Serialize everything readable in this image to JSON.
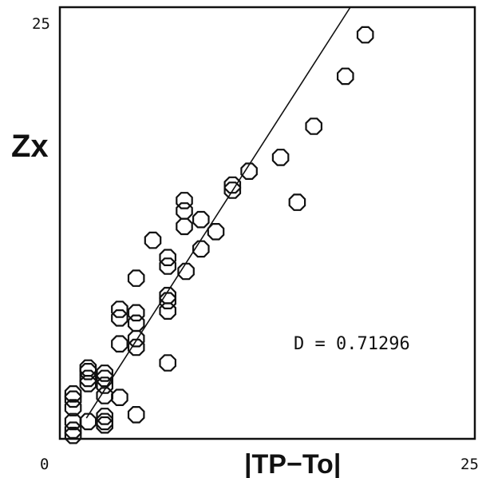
{
  "chart_data": {
    "type": "scatter",
    "y_axis_label": "Zx",
    "x_axis_label": "|TP−To|",
    "xlim": [
      0,
      25
    ],
    "ylim": [
      0,
      25
    ],
    "x_ticks": [
      "0",
      "25"
    ],
    "y_ticks": [
      "25"
    ],
    "annotation": "D = 0.71296",
    "fit_line": [
      [
        1.6,
        1.2
      ],
      [
        17.5,
        25.0
      ]
    ],
    "points": [
      [
        0.8,
        0.2
      ],
      [
        0.8,
        0.5
      ],
      [
        0.8,
        1.0
      ],
      [
        0.8,
        1.8
      ],
      [
        0.8,
        2.3
      ],
      [
        0.8,
        2.6
      ],
      [
        1.7,
        1.0
      ],
      [
        1.7,
        3.2
      ],
      [
        1.7,
        3.5
      ],
      [
        1.7,
        3.9
      ],
      [
        1.7,
        4.1
      ],
      [
        2.7,
        0.8
      ],
      [
        2.7,
        1.0
      ],
      [
        2.7,
        1.3
      ],
      [
        2.7,
        2.5
      ],
      [
        2.7,
        3.1
      ],
      [
        2.7,
        3.5
      ],
      [
        2.7,
        3.8
      ],
      [
        3.6,
        2.4
      ],
      [
        3.6,
        5.5
      ],
      [
        3.6,
        7.0
      ],
      [
        3.6,
        7.5
      ],
      [
        4.6,
        1.4
      ],
      [
        4.6,
        5.3
      ],
      [
        4.6,
        5.8
      ],
      [
        4.6,
        6.7
      ],
      [
        4.6,
        7.3
      ],
      [
        4.6,
        9.3
      ],
      [
        5.6,
        11.5
      ],
      [
        6.5,
        4.4
      ],
      [
        6.5,
        7.4
      ],
      [
        6.5,
        8.0
      ],
      [
        6.5,
        8.3
      ],
      [
        6.5,
        10.0
      ],
      [
        6.5,
        10.5
      ],
      [
        7.5,
        12.3
      ],
      [
        7.5,
        13.2
      ],
      [
        7.5,
        13.8
      ],
      [
        7.6,
        9.7
      ],
      [
        8.5,
        11.0
      ],
      [
        8.5,
        12.7
      ],
      [
        9.4,
        12.0
      ],
      [
        10.4,
        14.4
      ],
      [
        10.4,
        14.7
      ],
      [
        11.4,
        15.5
      ],
      [
        13.3,
        16.3
      ],
      [
        14.3,
        13.7
      ],
      [
        15.3,
        18.1
      ],
      [
        17.2,
        21.0
      ],
      [
        18.4,
        23.4
      ]
    ]
  }
}
